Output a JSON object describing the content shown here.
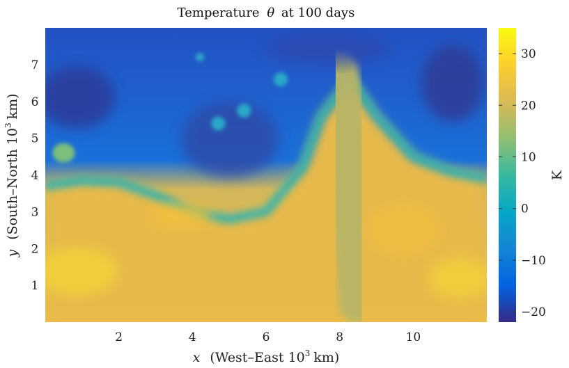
{
  "chart_data": {
    "type": "heatmap",
    "title": "Temperature",
    "title_symbol": "θ",
    "title_suffix": "at 100 days",
    "xlabel_var": "x",
    "xlabel_text": "(West–East 10",
    "xlabel_sup": "3",
    "xlabel_unit": "km)",
    "ylabel_var": "y",
    "ylabel_text": "(South–North 10",
    "ylabel_sup": "3",
    "ylabel_unit": "km)",
    "xlim": [
      0,
      12
    ],
    "ylim": [
      0,
      8
    ],
    "xticks": [
      2,
      4,
      6,
      8,
      10
    ],
    "yticks": [
      1,
      2,
      3,
      4,
      5,
      6,
      7
    ],
    "colorbar": {
      "label": "K",
      "range": [
        -22,
        35
      ],
      "ticks": [
        -20,
        -10,
        0,
        10,
        20,
        30
      ],
      "colormap": "parula",
      "colors": [
        "#352a87",
        "#0363e1",
        "#1485d4",
        "#06a7c6",
        "#38b99e",
        "#92bf73",
        "#d9ba56",
        "#fcce2e",
        "#f9fb0e"
      ]
    },
    "field": {
      "description_cold": "cold air mass (about -15 to -22 K) in the north",
      "description_warm": "warm air mass (about 25 to 33 K) in the south",
      "front_boundary": [
        [
          0,
          3.7
        ],
        [
          1,
          3.85
        ],
        [
          2,
          3.8
        ],
        [
          3,
          3.45
        ],
        [
          4,
          3.0
        ],
        [
          5,
          2.8
        ],
        [
          6,
          3.0
        ],
        [
          7,
          4.2
        ],
        [
          7.5,
          5.6
        ],
        [
          8.3,
          6.6
        ],
        [
          9,
          5.6
        ],
        [
          10,
          4.5
        ],
        [
          11,
          4.1
        ],
        [
          12,
          3.9
        ]
      ],
      "warm_tongue": [
        [
          8.0,
          6.8
        ],
        [
          8.2,
          5.0
        ],
        [
          8.3,
          3.0
        ],
        [
          8.5,
          0.5
        ]
      ],
      "eddies": [
        [
          4.7,
          5.4
        ],
        [
          5.4,
          5.75
        ],
        [
          6.4,
          6.6
        ],
        [
          4.2,
          7.2
        ]
      ],
      "warm_blob": [
        [
          0.5,
          4.6
        ]
      ]
    }
  }
}
